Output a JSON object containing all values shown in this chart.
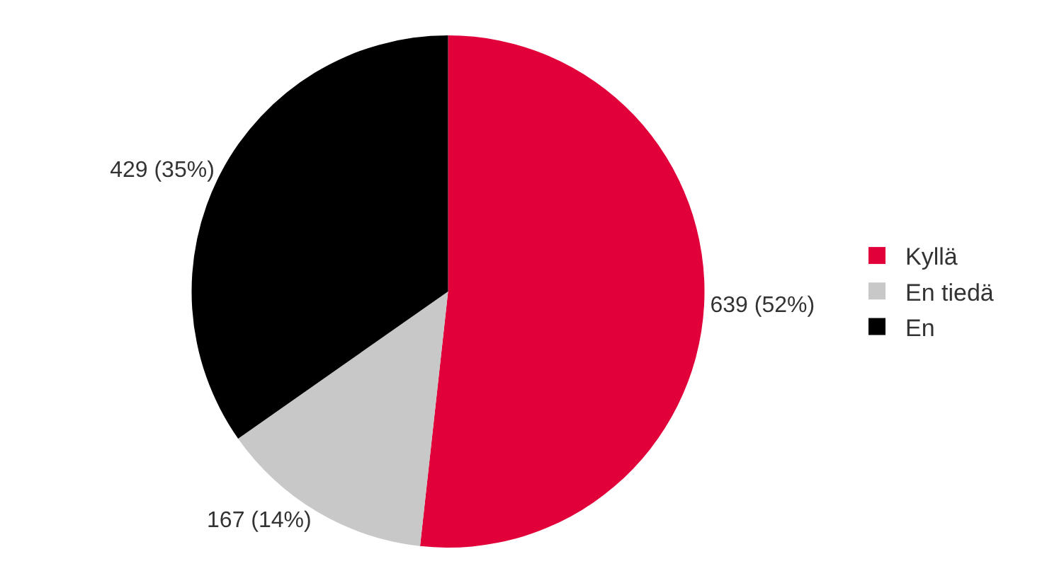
{
  "chart_data": {
    "type": "pie",
    "categories": [
      "Kyllä",
      "En tiedä",
      "En"
    ],
    "values": [
      639,
      167,
      429
    ],
    "colors": [
      "#e2003a",
      "#c8c8c8",
      "#000000"
    ],
    "value_labels": [
      "639 (52%)",
      "167 (14%)",
      "429 (35%)"
    ],
    "legend": "right"
  }
}
